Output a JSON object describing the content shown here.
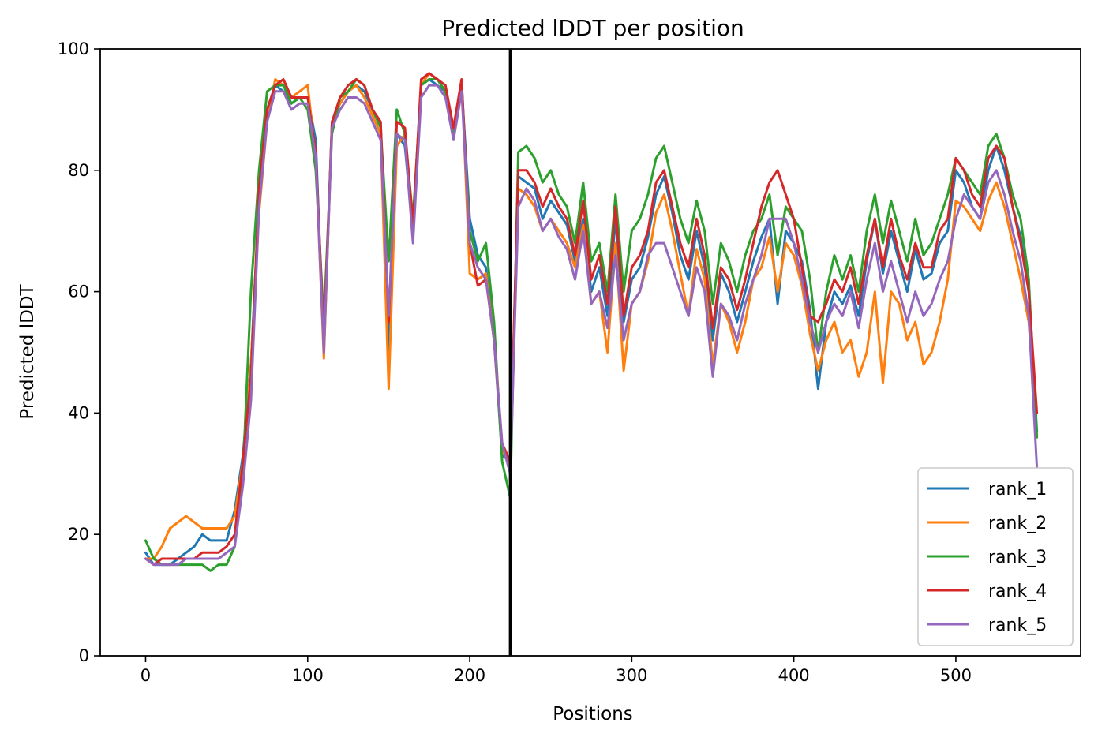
{
  "chart_data": {
    "type": "line",
    "title": "Predicted lDDT per position",
    "xlabel": "Positions",
    "ylabel": "Predicted lDDT",
    "xlim": [
      -28,
      577
    ],
    "ylim": [
      0,
      100
    ],
    "xticks": [
      0,
      100,
      200,
      300,
      400,
      500
    ],
    "yticks": [
      0,
      20,
      40,
      60,
      80,
      100
    ],
    "grid": false,
    "legend_position": "lower right",
    "vertical_lines": [
      {
        "x": 225,
        "color": "#000000"
      }
    ],
    "x": [
      0,
      5,
      10,
      15,
      20,
      25,
      30,
      35,
      40,
      45,
      50,
      55,
      60,
      65,
      70,
      75,
      80,
      85,
      90,
      95,
      100,
      105,
      110,
      115,
      120,
      125,
      130,
      135,
      140,
      145,
      150,
      155,
      160,
      165,
      170,
      175,
      180,
      185,
      190,
      195,
      200,
      205,
      210,
      215,
      220,
      225,
      230,
      235,
      240,
      245,
      250,
      255,
      260,
      265,
      270,
      275,
      280,
      285,
      290,
      295,
      300,
      305,
      310,
      315,
      320,
      325,
      330,
      335,
      340,
      345,
      350,
      355,
      360,
      365,
      370,
      375,
      380,
      385,
      390,
      395,
      400,
      405,
      410,
      415,
      420,
      425,
      430,
      435,
      440,
      445,
      450,
      455,
      460,
      465,
      470,
      475,
      480,
      485,
      490,
      495,
      500,
      505,
      510,
      515,
      520,
      525,
      530,
      535,
      540,
      545,
      550
    ],
    "series": [
      {
        "name": "rank_1",
        "color": "#1f77b4",
        "values": [
          17,
          15,
          15,
          15,
          16,
          17,
          18,
          20,
          19,
          19,
          19,
          24,
          33,
          48,
          75,
          90,
          94,
          93,
          91,
          92,
          92,
          85,
          50,
          88,
          91,
          93,
          94,
          93,
          90,
          88,
          50,
          86,
          84,
          70,
          94,
          95,
          94,
          93,
          86,
          94,
          72,
          66,
          64,
          52,
          33,
          32,
          79,
          78,
          77,
          72,
          75,
          73,
          71,
          65,
          72,
          60,
          64,
          56,
          72,
          55,
          62,
          64,
          69,
          76,
          79,
          73,
          66,
          62,
          70,
          64,
          52,
          63,
          60,
          55,
          60,
          65,
          69,
          72,
          58,
          70,
          68,
          65,
          57,
          44,
          55,
          60,
          58,
          61,
          56,
          65,
          72,
          63,
          70,
          65,
          60,
          67,
          62,
          63,
          68,
          70,
          80,
          78,
          74,
          72,
          80,
          84,
          80,
          74,
          69,
          60,
          37
        ]
      },
      {
        "name": "rank_2",
        "color": "#ff7f0e",
        "values": [
          16,
          16,
          18,
          21,
          22,
          23,
          22,
          21,
          21,
          21,
          21,
          23,
          32,
          48,
          73,
          88,
          95,
          94,
          92,
          93,
          94,
          82,
          49,
          88,
          91,
          93,
          94,
          92,
          89,
          86,
          44,
          84,
          86,
          69,
          94,
          96,
          95,
          93,
          87,
          95,
          63,
          62,
          63,
          52,
          34,
          31,
          77,
          76,
          74,
          70,
          72,
          70,
          68,
          64,
          71,
          58,
          60,
          50,
          68,
          47,
          58,
          60,
          65,
          73,
          76,
          70,
          63,
          56,
          67,
          62,
          48,
          58,
          55,
          50,
          55,
          62,
          64,
          69,
          60,
          68,
          66,
          61,
          53,
          47,
          52,
          55,
          50,
          52,
          46,
          50,
          60,
          45,
          60,
          58,
          52,
          55,
          48,
          50,
          55,
          62,
          75,
          74,
          72,
          70,
          75,
          78,
          74,
          68,
          62,
          55,
          36
        ]
      },
      {
        "name": "rank_3",
        "color": "#2ca02c",
        "values": [
          19,
          16,
          15,
          15,
          15,
          15,
          15,
          15,
          14,
          15,
          15,
          18,
          30,
          60,
          80,
          93,
          94,
          94,
          91,
          92,
          90,
          80,
          55,
          86,
          92,
          93,
          95,
          94,
          90,
          87,
          65,
          90,
          86,
          72,
          94,
          95,
          95,
          93,
          86,
          94,
          70,
          65,
          68,
          55,
          32,
          26,
          83,
          84,
          82,
          78,
          80,
          76,
          74,
          68,
          78,
          65,
          68,
          60,
          76,
          60,
          70,
          72,
          76,
          82,
          84,
          78,
          72,
          68,
          75,
          70,
          58,
          68,
          65,
          60,
          66,
          70,
          72,
          76,
          66,
          74,
          72,
          70,
          62,
          50,
          60,
          66,
          62,
          66,
          60,
          70,
          76,
          68,
          75,
          70,
          65,
          72,
          66,
          68,
          72,
          76,
          82,
          80,
          78,
          76,
          84,
          86,
          82,
          76,
          72,
          62,
          36
        ]
      },
      {
        "name": "rank_4",
        "color": "#d62728",
        "values": [
          16,
          15,
          16,
          16,
          16,
          16,
          16,
          17,
          17,
          17,
          18,
          20,
          32,
          46,
          77,
          90,
          94,
          95,
          92,
          92,
          92,
          83,
          52,
          88,
          92,
          94,
          95,
          94,
          90,
          88,
          55,
          88,
          87,
          71,
          95,
          96,
          95,
          94,
          87,
          95,
          68,
          61,
          62,
          52,
          35,
          32,
          80,
          80,
          78,
          74,
          77,
          74,
          72,
          66,
          75,
          62,
          66,
          58,
          74,
          56,
          64,
          66,
          70,
          78,
          80,
          74,
          68,
          64,
          72,
          66,
          54,
          64,
          62,
          57,
          62,
          68,
          74,
          78,
          80,
          76,
          72,
          64,
          56,
          55,
          58,
          62,
          60,
          64,
          58,
          66,
          72,
          64,
          72,
          66,
          62,
          68,
          64,
          64,
          70,
          72,
          82,
          80,
          76,
          74,
          82,
          84,
          82,
          74,
          68,
          60,
          40
        ]
      },
      {
        "name": "rank_5",
        "color": "#9467bd",
        "values": [
          16,
          15,
          15,
          15,
          15,
          16,
          16,
          16,
          16,
          16,
          17,
          18,
          28,
          42,
          74,
          88,
          93,
          93,
          90,
          91,
          91,
          82,
          50,
          87,
          90,
          92,
          92,
          91,
          88,
          85,
          56,
          86,
          85,
          68,
          92,
          94,
          94,
          92,
          85,
          93,
          68,
          64,
          62,
          52,
          35,
          30,
          74,
          77,
          75,
          70,
          72,
          69,
          67,
          62,
          70,
          58,
          60,
          54,
          66,
          52,
          58,
          60,
          66,
          68,
          68,
          64,
          60,
          56,
          64,
          60,
          46,
          58,
          56,
          52,
          58,
          62,
          66,
          72,
          72,
          72,
          68,
          62,
          55,
          50,
          55,
          58,
          56,
          60,
          54,
          62,
          68,
          60,
          65,
          60,
          55,
          60,
          56,
          58,
          62,
          65,
          72,
          76,
          74,
          72,
          78,
          80,
          76,
          70,
          65,
          56,
          31
        ]
      }
    ]
  }
}
